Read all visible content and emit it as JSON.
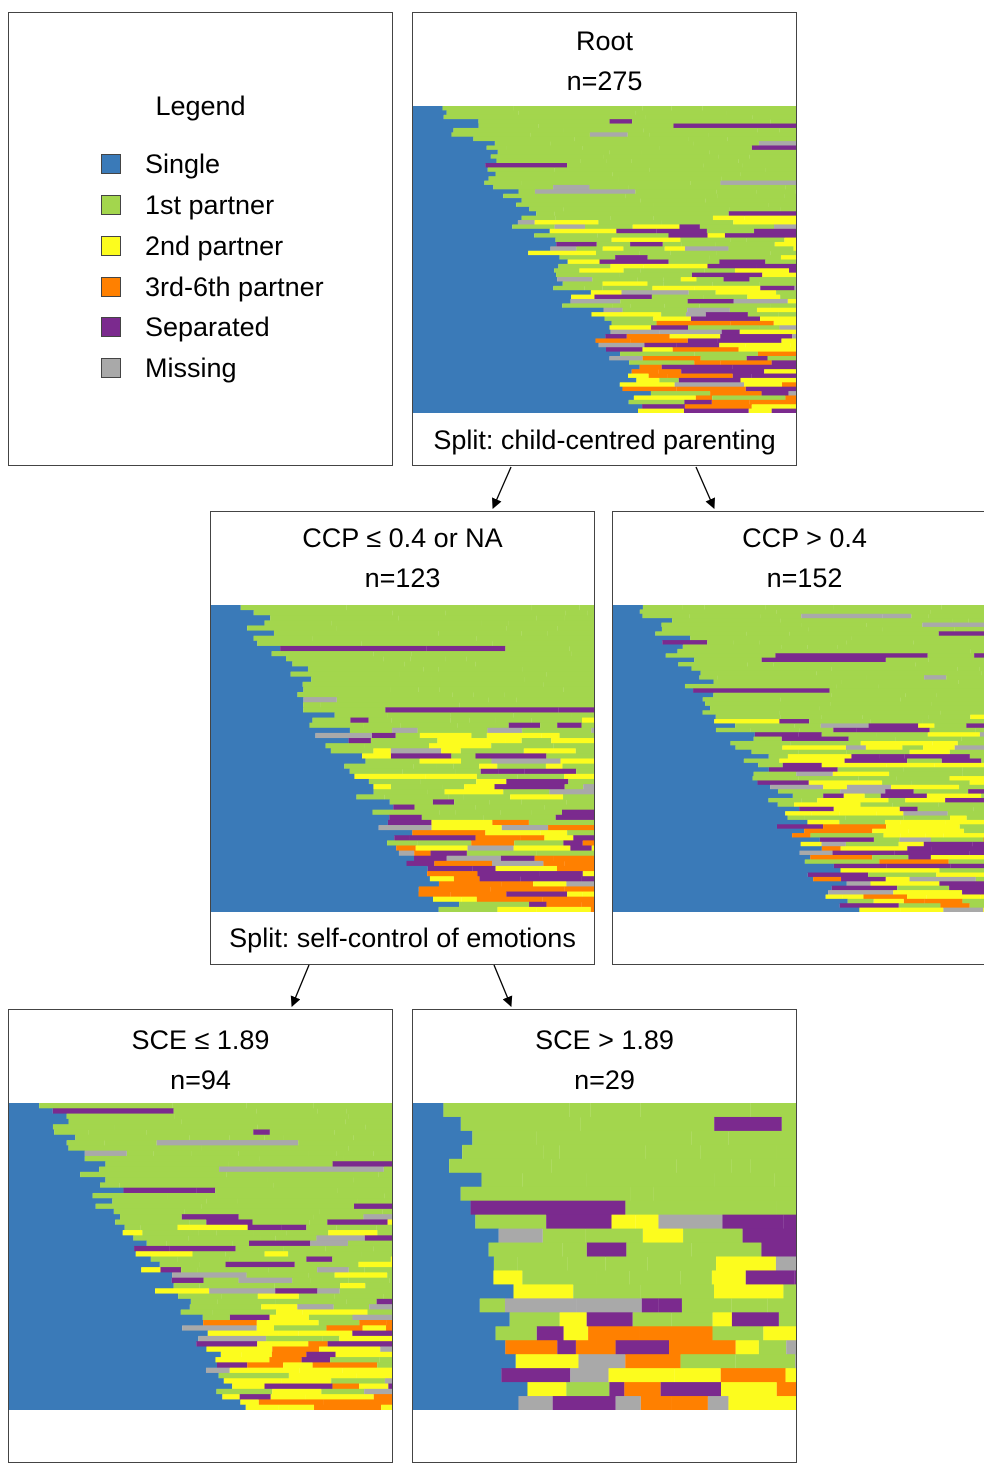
{
  "legend": {
    "title": "Legend",
    "items": [
      {
        "label": "Single",
        "color": "#3a7ab8"
      },
      {
        "label": "1st partner",
        "color": "#a3d64d"
      },
      {
        "label": "2nd partner",
        "color": "#fcfc1e"
      },
      {
        "label": "3rd-6th partner",
        "color": "#ff8000"
      },
      {
        "label": "Separated",
        "color": "#7b2a8e"
      },
      {
        "label": "Missing",
        "color": "#a9a9a9"
      }
    ]
  },
  "nodes": [
    {
      "id": "root",
      "title": "Root",
      "n": "n=275",
      "split": "Split: child-centred parenting"
    },
    {
      "id": "ccp_low",
      "title": "CCP ≤ 0.4 or NA",
      "n": "n=123",
      "split": "Split: self-control of emotions"
    },
    {
      "id": "ccp_high",
      "title": "CCP > 0.4",
      "n": "n=152",
      "split": ""
    },
    {
      "id": "sce_low",
      "title": "SCE ≤ 1.89",
      "n": "n=94",
      "split": ""
    },
    {
      "id": "sce_high",
      "title": "SCE > 1.89",
      "n": "n=29",
      "split": ""
    }
  ]
}
